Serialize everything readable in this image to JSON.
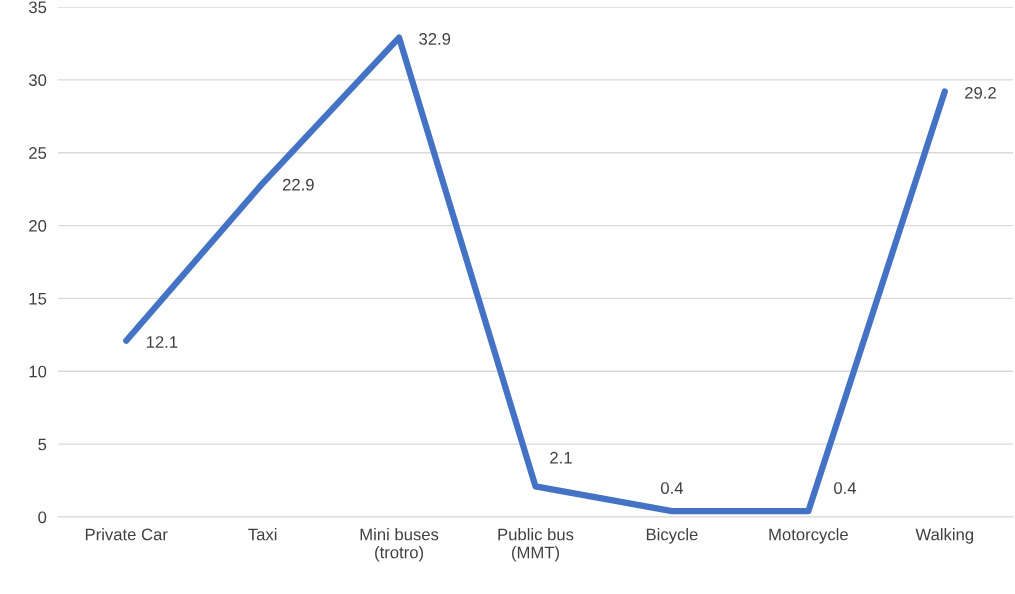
{
  "chart_data": {
    "type": "line",
    "categories": [
      "Private Car",
      "Taxi",
      "Mini buses\n(trotro)",
      "Public bus\n(MMT)",
      "Bicycle",
      "Motorcycle",
      "Walking"
    ],
    "series": [
      {
        "color": "#4472c4",
        "values": [
          12.1,
          22.9,
          32.9,
          2.1,
          0.4,
          0.4,
          29.2
        ]
      }
    ],
    "ylim": [
      0,
      35
    ],
    "yticks": [
      0,
      5,
      10,
      15,
      20,
      25,
      30,
      35
    ],
    "grid": "y",
    "data_labels": true,
    "marker": "none",
    "line_style": "solid"
  }
}
